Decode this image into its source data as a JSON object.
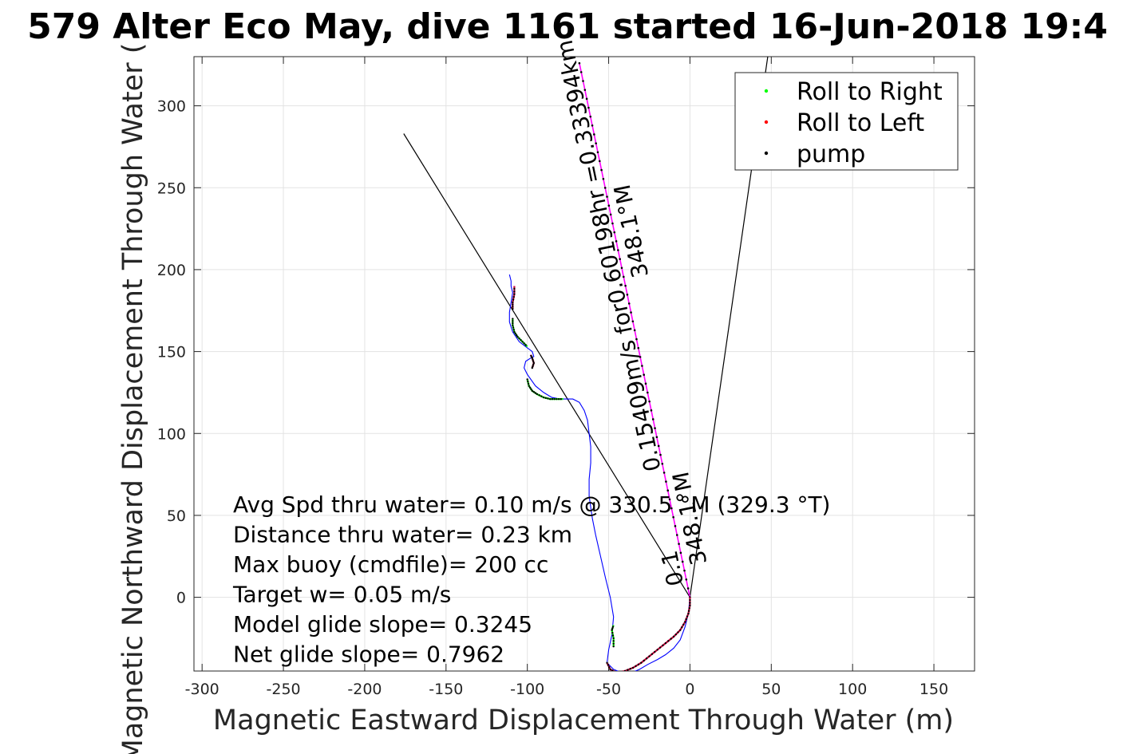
{
  "chart_data": {
    "type": "line",
    "title": "579 Alter Eco May, dive 1161 started 16-Jun-2018 19:4",
    "xlabel": "Magnetic Eastward Displacement Through Water (m)",
    "ylabel": "Magnetic Northward Displacement Through Water (",
    "xlim": [
      -305,
      175
    ],
    "ylim": [
      -45,
      330
    ],
    "xticks": [
      -300,
      -250,
      -200,
      -150,
      -100,
      -50,
      0,
      50,
      100,
      150
    ],
    "yticks": [
      0,
      50,
      100,
      150,
      200,
      250,
      300
    ],
    "grid": true,
    "legend": {
      "placement": "top-right",
      "entries": [
        {
          "label": "Roll to Right",
          "color": "#00ff00"
        },
        {
          "label": "Roll to Left",
          "color": "#ff0000"
        },
        {
          "label": "pump",
          "color": "#000000"
        }
      ]
    },
    "track": {
      "color": "#0000ff",
      "x": [
        0,
        -1,
        -3,
        -6,
        -10,
        -15,
        -20,
        -26,
        -31,
        -36,
        -42,
        -47,
        -51,
        -50,
        -48,
        -47,
        -49,
        -52,
        -55,
        -58,
        -60,
        -61,
        -62,
        -62,
        -61,
        -61,
        -62,
        -63,
        -65,
        -68,
        -72,
        -76,
        -80,
        -85,
        -90,
        -95,
        -100,
        -102,
        -101,
        -98,
        -96,
        -97,
        -101,
        -105,
        -109,
        -111,
        -111,
        -110,
        -109,
        -110,
        -110,
        -111
      ],
      "y": [
        0,
        -10,
        -18,
        -26,
        -31,
        -35,
        -38,
        -41,
        -44,
        -46,
        -46,
        -44,
        -40,
        -32,
        -23,
        -12,
        0,
        12,
        25,
        38,
        48,
        55,
        62,
        72,
        82,
        92,
        100,
        108,
        114,
        119,
        121,
        121,
        121,
        122,
        125,
        129,
        136,
        140,
        144,
        146,
        147,
        150,
        153,
        156,
        162,
        168,
        174,
        180,
        186,
        190,
        193,
        197
      ]
    },
    "roll_right_segments": [
      {
        "x": [
          -47,
          -47,
          -48,
          -47
        ],
        "y": [
          -30,
          -25,
          -20,
          -17
        ]
      },
      {
        "x": [
          -100,
          -99,
          -97,
          -94,
          -90,
          -86,
          -82,
          -78
        ],
        "y": [
          133,
          129,
          126,
          124,
          122,
          121,
          121,
          121
        ]
      },
      {
        "x": [
          -109,
          -109,
          -108,
          -106,
          -103,
          -100
        ],
        "y": [
          170,
          166,
          162,
          159,
          156,
          153
        ]
      }
    ],
    "roll_left_segments": [
      {
        "x": [
          -51,
          -49,
          -45,
          -40,
          -35,
          -30,
          -25,
          -20,
          -15,
          -10,
          -6,
          -3,
          -1,
          0,
          0
        ],
        "y": [
          -40,
          -44,
          -46,
          -45,
          -43,
          -40,
          -36,
          -32,
          -28,
          -24,
          -20,
          -15,
          -10,
          -5,
          0
        ]
      },
      {
        "x": [
          -97,
          -96,
          -97,
          -98
        ],
        "y": [
          140,
          143,
          146,
          148
        ]
      },
      {
        "x": [
          -109,
          -109,
          -108,
          -108
        ],
        "y": [
          176,
          180,
          185,
          190
        ]
      }
    ],
    "current_heading_line": {
      "color": "#ff00ff",
      "x": [
        0,
        -68
      ],
      "y": [
        0,
        326
      ]
    },
    "lines": [
      {
        "color": "#000000",
        "x": [
          0,
          -176
        ],
        "y": [
          0,
          283
        ]
      },
      {
        "color": "#000000",
        "x": [
          0,
          48
        ],
        "y": [
          0,
          331
        ]
      }
    ],
    "rotated_labels": [
      {
        "line1": "0.15409m/s for0.60198hr =0.33394km",
        "line2": "348.1°M"
      },
      {
        "line1": "0.1",
        "line2": "348.1°M"
      }
    ],
    "annotations": [
      "Avg Spd thru water=  0.10 m/s @ 330.5 °M (329.3 °T)",
      "Distance thru water=  0.23 km",
      "Max buoy (cmdfile)= 200 cc",
      "Target w= 0.05 m/s",
      "Model glide slope= 0.3245",
      "Net glide slope= 0.7962"
    ]
  }
}
